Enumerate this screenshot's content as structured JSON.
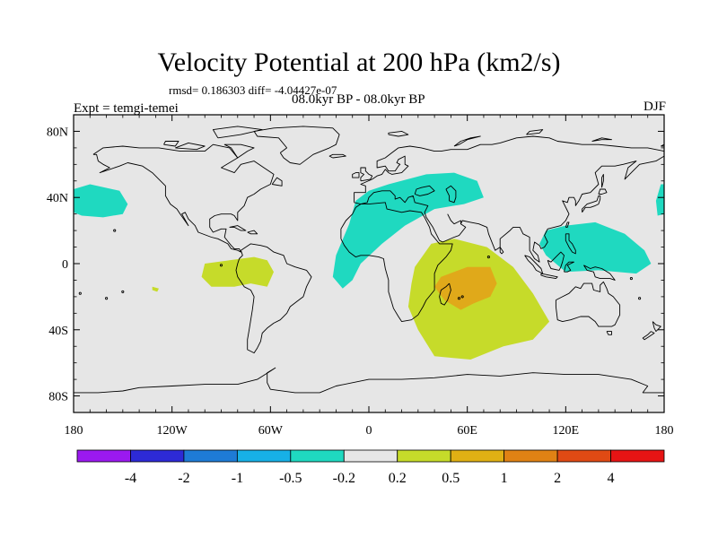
{
  "header": {
    "title": "Velocity Potential at 200 hPa (km2/s)",
    "stats": "rmsd= 0.186303 diff= -4.04427e-07",
    "expt": "Expt = temgi-temei",
    "subtitle": "08.0kyr BP - 08.0kyr BP",
    "season": "DJF"
  },
  "map": {
    "projection": "cylindrical-equidistant",
    "lon_range": [
      -180,
      180
    ],
    "lat_range": [
      -90,
      90
    ],
    "x_ticks": [
      {
        "lon": -180,
        "label": "180"
      },
      {
        "lon": -120,
        "label": "120W"
      },
      {
        "lon": -60,
        "label": "60W"
      },
      {
        "lon": 0,
        "label": "0"
      },
      {
        "lon": 60,
        "label": "60E"
      },
      {
        "lon": 120,
        "label": "120E"
      },
      {
        "lon": 180,
        "label": "180"
      }
    ],
    "y_ticks": [
      {
        "lat": 80,
        "label": "80N"
      },
      {
        "lat": 40,
        "label": "40N"
      },
      {
        "lat": 0,
        "label": "0"
      },
      {
        "lat": -40,
        "label": "40S"
      },
      {
        "lat": -80,
        "label": "80S"
      }
    ],
    "background_color": "#e6e6e6",
    "regions": [
      {
        "name": "north-pacific-negative",
        "level": "-0.5 to -0.2",
        "color": "#1fd9c0",
        "outline": [
          [
            -180,
            45
          ],
          [
            -170,
            48
          ],
          [
            -152,
            44
          ],
          [
            -147,
            36
          ],
          [
            -150,
            30
          ],
          [
            -162,
            28
          ],
          [
            -175,
            29
          ],
          [
            -180,
            31
          ]
        ]
      },
      {
        "name": "eurasia-atlantic-negative",
        "level": "-0.5 to -0.2",
        "color": "#1fd9c0",
        "outline": [
          [
            -20,
            5
          ],
          [
            -12,
            24
          ],
          [
            -8,
            38
          ],
          [
            0,
            44
          ],
          [
            12,
            48
          ],
          [
            35,
            54
          ],
          [
            52,
            55
          ],
          [
            66,
            50
          ],
          [
            70,
            40
          ],
          [
            58,
            36
          ],
          [
            40,
            33
          ],
          [
            22,
            23
          ],
          [
            8,
            12
          ],
          [
            -5,
            0
          ],
          [
            -10,
            -10
          ],
          [
            -16,
            -15
          ],
          [
            -22,
            -8
          ]
        ]
      },
      {
        "name": "west-pacific-negative",
        "level": "-0.5 to -0.2",
        "color": "#1fd9c0",
        "outline": [
          [
            108,
            20
          ],
          [
            120,
            23
          ],
          [
            138,
            25
          ],
          [
            156,
            18
          ],
          [
            168,
            8
          ],
          [
            172,
            0
          ],
          [
            163,
            -6
          ],
          [
            140,
            -4
          ],
          [
            120,
            -5
          ],
          [
            108,
            5
          ],
          [
            104,
            12
          ]
        ]
      },
      {
        "name": "dateline-negative",
        "level": "-0.5 to -0.2",
        "color": "#1fd9c0",
        "outline": [
          [
            178,
            48
          ],
          [
            180,
            48
          ],
          [
            180,
            30
          ],
          [
            176,
            29
          ],
          [
            175,
            38
          ]
        ]
      },
      {
        "name": "south-america-positive",
        "level": "0.2 to 0.5",
        "color": "#c6db2a",
        "outline": [
          [
            -100,
            0
          ],
          [
            -85,
            2
          ],
          [
            -70,
            4
          ],
          [
            -62,
            2
          ],
          [
            -58,
            -5
          ],
          [
            -62,
            -14
          ],
          [
            -72,
            -12
          ],
          [
            -82,
            -14
          ],
          [
            -96,
            -14
          ],
          [
            -102,
            -8
          ]
        ]
      },
      {
        "name": "east-pacific-speck",
        "level": "0.2 to 0.5",
        "color": "#c6db2a",
        "outline": [
          [
            -132,
            -14
          ],
          [
            -128,
            -15
          ],
          [
            -129,
            -17
          ],
          [
            -132,
            -16
          ]
        ]
      },
      {
        "name": "africa-indian-ocean-positive",
        "level": "0.2 to 0.5",
        "color": "#c6db2a",
        "outline": [
          [
            28,
            -2
          ],
          [
            38,
            12
          ],
          [
            52,
            15
          ],
          [
            72,
            10
          ],
          [
            88,
            -2
          ],
          [
            100,
            -18
          ],
          [
            110,
            -35
          ],
          [
            100,
            -46
          ],
          [
            82,
            -50
          ],
          [
            62,
            -58
          ],
          [
            40,
            -56
          ],
          [
            30,
            -40
          ],
          [
            24,
            -26
          ],
          [
            26,
            -12
          ]
        ]
      },
      {
        "name": "madagascar-positive-core",
        "level": "0.5 to 1",
        "color": "#e0a91a",
        "outline": [
          [
            44,
            -8
          ],
          [
            60,
            -2
          ],
          [
            74,
            -2
          ],
          [
            78,
            -12
          ],
          [
            74,
            -20
          ],
          [
            64,
            -24
          ],
          [
            56,
            -28
          ],
          [
            46,
            -22
          ],
          [
            40,
            -14
          ]
        ]
      }
    ]
  },
  "colorbar": {
    "colors": [
      "#9b19f0",
      "#2d2ad6",
      "#1e7bd6",
      "#17b0e6",
      "#1fd9c0",
      "#e6e6e6",
      "#c6db2a",
      "#e0b014",
      "#e08214",
      "#e04a14",
      "#e61414"
    ],
    "labels": [
      "-4",
      "-2",
      "-1",
      "-0.5",
      "-0.2",
      "0.2",
      "0.5",
      "1",
      "2",
      "4"
    ]
  }
}
